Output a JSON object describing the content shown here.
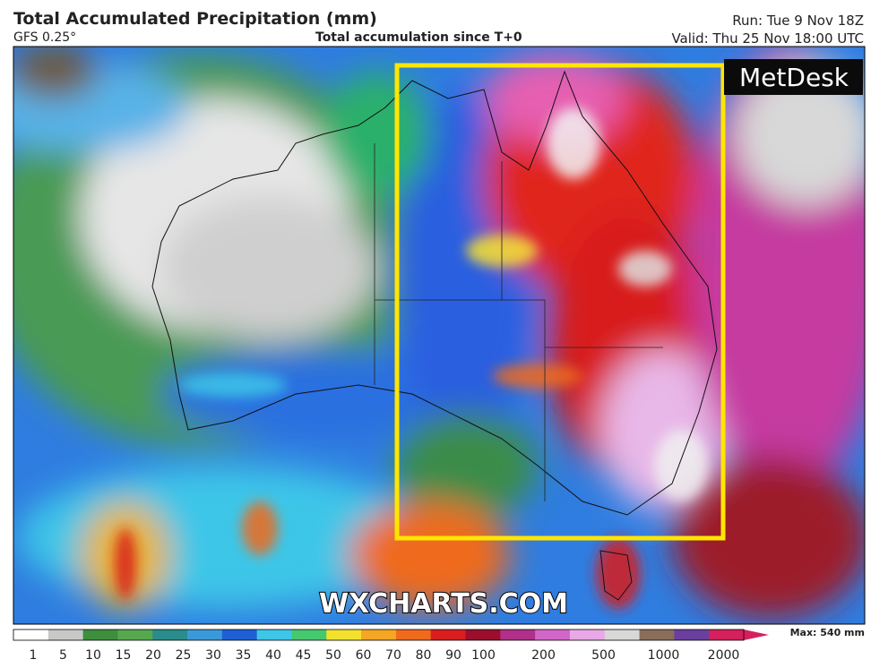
{
  "header": {
    "title": "Total Accumulated Precipitation (mm)",
    "model": "GFS 0.25°",
    "subtitle": "Total accumulation since T+0",
    "run": "Run: Tue 9 Nov 18Z",
    "valid": "Valid: Thu 25 Nov 18:00 UTC"
  },
  "map": {
    "logo": "MetDesk",
    "watermark": "WXCHARTS.COM"
  },
  "colorbar": {
    "max_label": "Max: 540 mm",
    "ticks": [
      1,
      5,
      10,
      15,
      20,
      25,
      30,
      35,
      40,
      45,
      50,
      60,
      70,
      80,
      90,
      100,
      200,
      500,
      1000,
      2000
    ],
    "colors": [
      "#ffffff",
      "#c8c8c8",
      "#3d8f3d",
      "#56a84f",
      "#2a8c8c",
      "#3a9ad9",
      "#1f5fd6",
      "#3ec6e8",
      "#46c86e",
      "#f2e22e",
      "#f5a623",
      "#ef6a1d",
      "#d81e1e",
      "#9c0f2c",
      "#b0308a",
      "#d266c8",
      "#e9a8e6",
      "#d8d8d8",
      "#8a6e5a",
      "#6a3fa0",
      "#d4205c"
    ]
  }
}
